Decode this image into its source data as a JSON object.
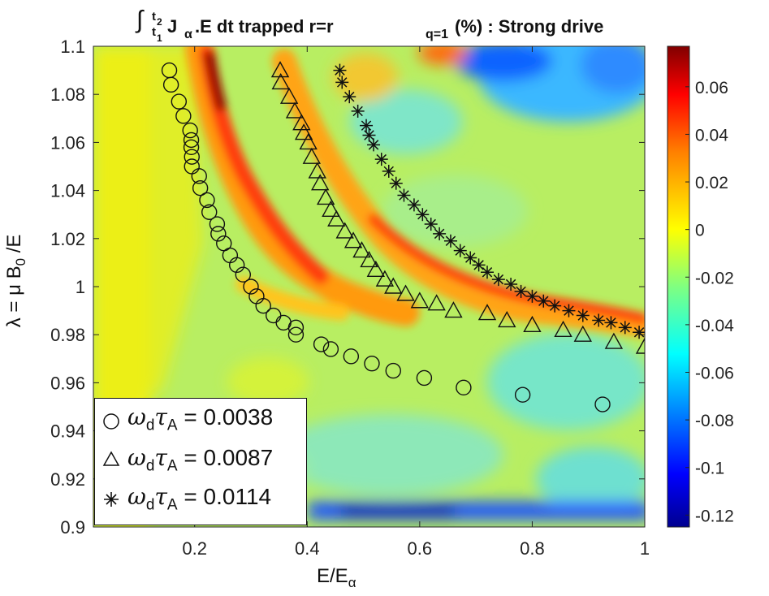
{
  "chart_data": {
    "type": "heatmap",
    "title": {
      "integral_sign": "∫",
      "upper_limit": "t",
      "upper_limit_sub": "2",
      "lower_limit": "t",
      "lower_limit_sub": "1",
      "body_part1": " J",
      "body_sub_alpha": "α",
      "body_part2": ".E dt  trapped r=r",
      "body_sub_q": "q=1",
      "body_part3": " (%) : Strong drive"
    },
    "xlabel": {
      "main": "E/E",
      "sub": "α"
    },
    "ylabel": {
      "prefix": "λ = μ B",
      "sub": "0",
      "suffix": " /E"
    },
    "xlim": [
      0.02,
      1.0
    ],
    "ylim": [
      0.9,
      1.1
    ],
    "xticks": [
      0.2,
      0.4,
      0.6,
      0.8,
      1.0
    ],
    "xtick_labels": [
      "0.2",
      "0.4",
      "0.6",
      "0.8",
      "1"
    ],
    "yticks": [
      0.9,
      0.92,
      0.94,
      0.96,
      0.98,
      1.0,
      1.02,
      1.04,
      1.06,
      1.08,
      1.1
    ],
    "ytick_labels": [
      "0.9",
      "0.92",
      "0.94",
      "0.96",
      "0.98",
      "1",
      "1.02",
      "1.04",
      "1.06",
      "1.08",
      "1.1"
    ],
    "colorbar": {
      "range": [
        -0.125,
        0.077
      ],
      "ticks": [
        0.06,
        0.04,
        0.02,
        0,
        -0.02,
        -0.04,
        -0.06,
        -0.08,
        -0.1,
        -0.12
      ],
      "tick_labels": [
        "0.06",
        "0.04",
        "0.02",
        "0",
        "-0.02",
        "-0.04",
        "-0.06",
        "-0.08",
        "-0.1",
        "-0.12"
      ],
      "colormap": [
        "#00008f",
        "#0000ff",
        "#0080ff",
        "#00ffff",
        "#80ff80",
        "#ffff00",
        "#ff8000",
        "#ff0000",
        "#800000"
      ]
    },
    "series": [
      {
        "name": "circle",
        "marker": "circle",
        "legend_symbol": "○",
        "legend_omega": "ω",
        "legend_sub_d": "d",
        "legend_tau": "τ",
        "legend_sub_A": "A",
        "legend_value": " = 0.0038",
        "x": [
          0.155,
          0.158,
          0.172,
          0.18,
          0.192,
          0.194,
          0.194,
          0.195,
          0.195,
          0.208,
          0.21,
          0.222,
          0.226,
          0.24,
          0.242,
          0.252,
          0.263,
          0.275,
          0.286,
          0.3,
          0.31,
          0.322,
          0.34,
          0.358,
          0.38,
          0.38,
          0.425,
          0.442,
          0.478,
          0.515,
          0.553,
          0.608,
          0.678,
          0.783,
          0.925
        ],
        "y": [
          1.09,
          1.084,
          1.077,
          1.071,
          1.065,
          1.061,
          1.058,
          1.054,
          1.05,
          1.046,
          1.041,
          1.036,
          1.031,
          1.026,
          1.022,
          1.018,
          1.013,
          1.009,
          1.005,
          1.0,
          0.996,
          0.992,
          0.988,
          0.985,
          0.983,
          0.98,
          0.976,
          0.974,
          0.971,
          0.968,
          0.965,
          0.962,
          0.958,
          0.955,
          0.951
        ]
      },
      {
        "name": "triangle",
        "marker": "triangle",
        "legend_symbol": "△",
        "legend_omega": "ω",
        "legend_sub_d": "d",
        "legend_tau": "τ",
        "legend_sub_A": "A",
        "legend_value": " = 0.0087",
        "x": [
          0.352,
          0.353,
          0.368,
          0.378,
          0.39,
          0.394,
          0.402,
          0.408,
          0.418,
          0.423,
          0.433,
          0.442,
          0.452,
          0.467,
          0.482,
          0.497,
          0.51,
          0.522,
          0.538,
          0.553,
          0.575,
          0.6,
          0.63,
          0.66,
          0.72,
          0.755,
          0.8,
          0.855,
          0.89,
          0.945,
          1.0
        ],
        "y": [
          1.09,
          1.085,
          1.079,
          1.073,
          1.068,
          1.064,
          1.06,
          1.054,
          1.048,
          1.043,
          1.037,
          1.032,
          1.028,
          1.023,
          1.019,
          1.015,
          1.011,
          1.007,
          1.003,
          1.0,
          0.997,
          0.994,
          0.993,
          0.99,
          0.989,
          0.986,
          0.984,
          0.982,
          0.98,
          0.977,
          0.975
        ]
      },
      {
        "name": "asterisk",
        "marker": "asterisk",
        "legend_symbol": "✱",
        "legend_omega": "ω",
        "legend_sub_d": "d",
        "legend_tau": "τ",
        "legend_sub_A": "A",
        "legend_value": " = 0.0114",
        "x": [
          0.458,
          0.462,
          0.475,
          0.49,
          0.505,
          0.51,
          0.518,
          0.532,
          0.545,
          0.558,
          0.572,
          0.59,
          0.605,
          0.62,
          0.635,
          0.655,
          0.672,
          0.69,
          0.705,
          0.72,
          0.74,
          0.762,
          0.78,
          0.8,
          0.82,
          0.84,
          0.865,
          0.89,
          0.918,
          0.94,
          0.965,
          0.99
        ],
        "y": [
          1.09,
          1.085,
          1.079,
          1.073,
          1.067,
          1.063,
          1.059,
          1.053,
          1.048,
          1.043,
          1.038,
          1.034,
          1.03,
          1.026,
          1.022,
          1.019,
          1.015,
          1.012,
          1.009,
          1.006,
          1.003,
          1.001,
          0.998,
          0.996,
          0.994,
          0.992,
          0.99,
          0.988,
          0.986,
          0.985,
          0.983,
          0.981
        ]
      }
    ]
  }
}
